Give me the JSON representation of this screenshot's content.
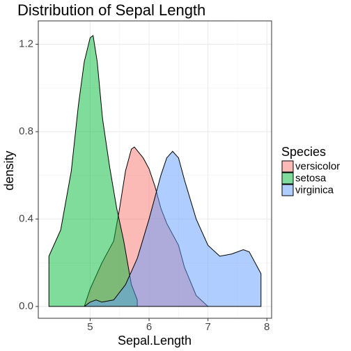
{
  "chart_data": {
    "type": "density",
    "title": "Distribution of Sepal Length",
    "x_label": "Sepal.Length",
    "y_label": "density",
    "legend_title": "Species",
    "legend_position": "right",
    "grid": true,
    "xlim": [
      4.12,
      8.08
    ],
    "ylim": [
      -0.054,
      1.307
    ],
    "xticks": [
      5,
      6,
      7,
      8
    ],
    "yticks": [
      {
        "value": 0,
        "label": "0.0"
      },
      0.4,
      0.8,
      1.2
    ],
    "series": [
      {
        "name": "versicolor",
        "color": "#F8766D",
        "x": [
          4.9,
          5.0,
          5.2,
          5.4,
          5.5,
          5.6,
          5.7,
          5.75,
          5.9,
          6.0,
          6.1,
          6.2,
          6.3,
          6.5,
          6.6,
          6.8,
          7.0
        ],
        "values": [
          0.0,
          0.08,
          0.2,
          0.3,
          0.45,
          0.62,
          0.72,
          0.73,
          0.68,
          0.63,
          0.55,
          0.45,
          0.38,
          0.28,
          0.18,
          0.05,
          0.0
        ]
      },
      {
        "name": "setosa",
        "color": "#00BA38",
        "x": [
          4.3,
          4.5,
          4.68,
          4.8,
          4.9,
          5.0,
          5.05,
          5.12,
          5.21,
          5.33,
          5.45,
          5.57,
          5.7,
          5.8
        ],
        "values": [
          0.23,
          0.35,
          0.62,
          0.92,
          1.12,
          1.23,
          1.24,
          1.12,
          0.86,
          0.64,
          0.45,
          0.3,
          0.1,
          0.03
        ]
      },
      {
        "name": "virginica",
        "color": "#619CFF",
        "x": [
          4.9,
          5.0,
          5.1,
          5.2,
          5.4,
          5.6,
          5.8,
          6.0,
          6.2,
          6.3,
          6.4,
          6.5,
          6.6,
          6.8,
          7.0,
          7.2,
          7.4,
          7.6,
          7.7,
          7.8,
          7.9
        ],
        "values": [
          0.0,
          0.02,
          0.03,
          0.02,
          0.03,
          0.1,
          0.22,
          0.4,
          0.6,
          0.68,
          0.71,
          0.68,
          0.58,
          0.4,
          0.28,
          0.23,
          0.24,
          0.26,
          0.25,
          0.2,
          0.15
        ]
      }
    ]
  }
}
